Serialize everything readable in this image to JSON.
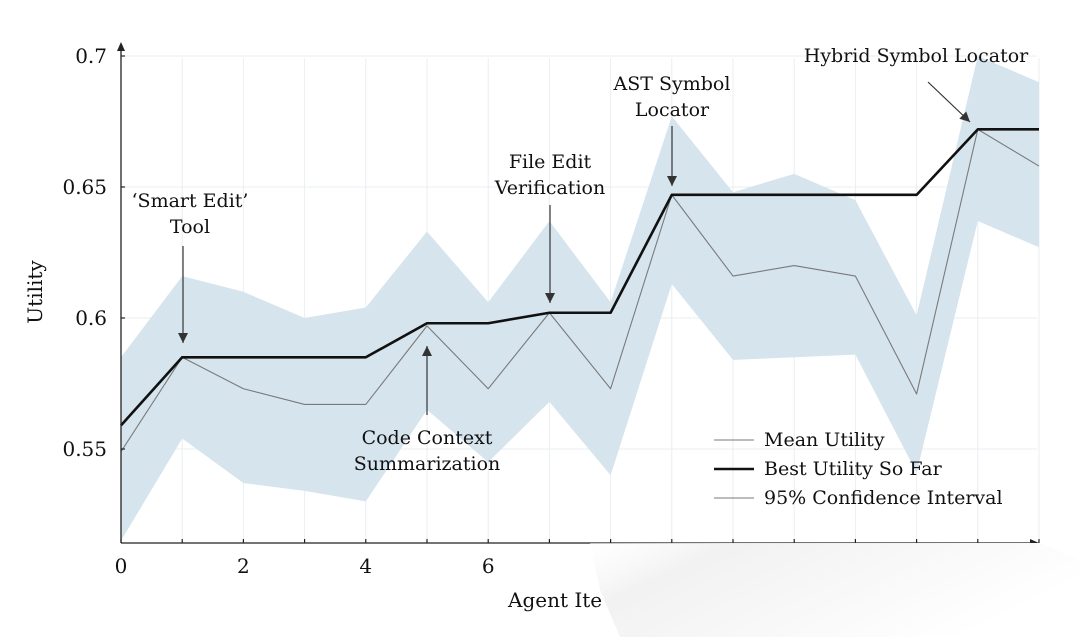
{
  "chart_data": {
    "type": "line",
    "xlabel": "Agent Ite",
    "ylabel": "Utility",
    "xlim": [
      0,
      15
    ],
    "ylim": [
      0.515,
      0.7
    ],
    "x_ticks": [
      0,
      2,
      4,
      6
    ],
    "y_ticks": [
      0.55,
      0.6,
      0.65,
      0.7
    ],
    "y_tick_labels": [
      "0.55",
      "0.6",
      "0.65",
      "0.7"
    ],
    "x_tick_labels": [
      "0",
      "2",
      "4",
      "6"
    ],
    "grid": true,
    "x": [
      0,
      1,
      2,
      3,
      4,
      5,
      6,
      7,
      8,
      9,
      10,
      11,
      12,
      13,
      14,
      15
    ],
    "series": [
      {
        "name": "Mean Utility",
        "style": "thin",
        "color": "#7a7a7a",
        "values": [
          0.549,
          0.585,
          0.573,
          0.567,
          0.567,
          0.597,
          0.573,
          0.602,
          0.573,
          0.647,
          0.616,
          0.62,
          0.616,
          0.571,
          0.672,
          0.658
        ]
      },
      {
        "name": "Best Utility So Far",
        "style": "thick",
        "color": "#111111",
        "values": [
          0.559,
          0.585,
          0.585,
          0.585,
          0.585,
          0.598,
          0.598,
          0.602,
          0.602,
          0.647,
          0.647,
          0.647,
          0.647,
          0.647,
          0.672,
          0.672
        ]
      }
    ],
    "confidence_band": {
      "name": "95% Confidence Interval",
      "color": "#d5e4ed",
      "lower": [
        0.515,
        0.554,
        0.537,
        0.534,
        0.53,
        0.565,
        0.545,
        0.568,
        0.54,
        0.613,
        0.584,
        0.585,
        0.586,
        0.541,
        0.637,
        0.627
      ],
      "upper": [
        0.585,
        0.616,
        0.61,
        0.6,
        0.604,
        0.633,
        0.606,
        0.637,
        0.606,
        0.677,
        0.648,
        0.655,
        0.645,
        0.601,
        0.7,
        0.69
      ]
    },
    "legend": {
      "position": "bottom-right",
      "entries": [
        "Mean Utility",
        "Best Utility So Far",
        "95% Confidence Interval"
      ]
    },
    "annotations": [
      {
        "lines": [
          "‘Smart Edit’",
          "Tool"
        ],
        "x": 1,
        "y": 0.585,
        "direction": "down"
      },
      {
        "lines": [
          "Code Context",
          "Summarization"
        ],
        "x": 5,
        "y": 0.597,
        "direction": "up"
      },
      {
        "lines": [
          "File Edit",
          "Verification"
        ],
        "x": 7,
        "y": 0.602,
        "direction": "down"
      },
      {
        "lines": [
          "AST Symbol",
          "Locator"
        ],
        "x": 9,
        "y": 0.647,
        "direction": "down"
      },
      {
        "lines": [
          "Hybrid Symbol Locator"
        ],
        "x": 14,
        "y": 0.672,
        "direction": "diagonal"
      }
    ]
  }
}
